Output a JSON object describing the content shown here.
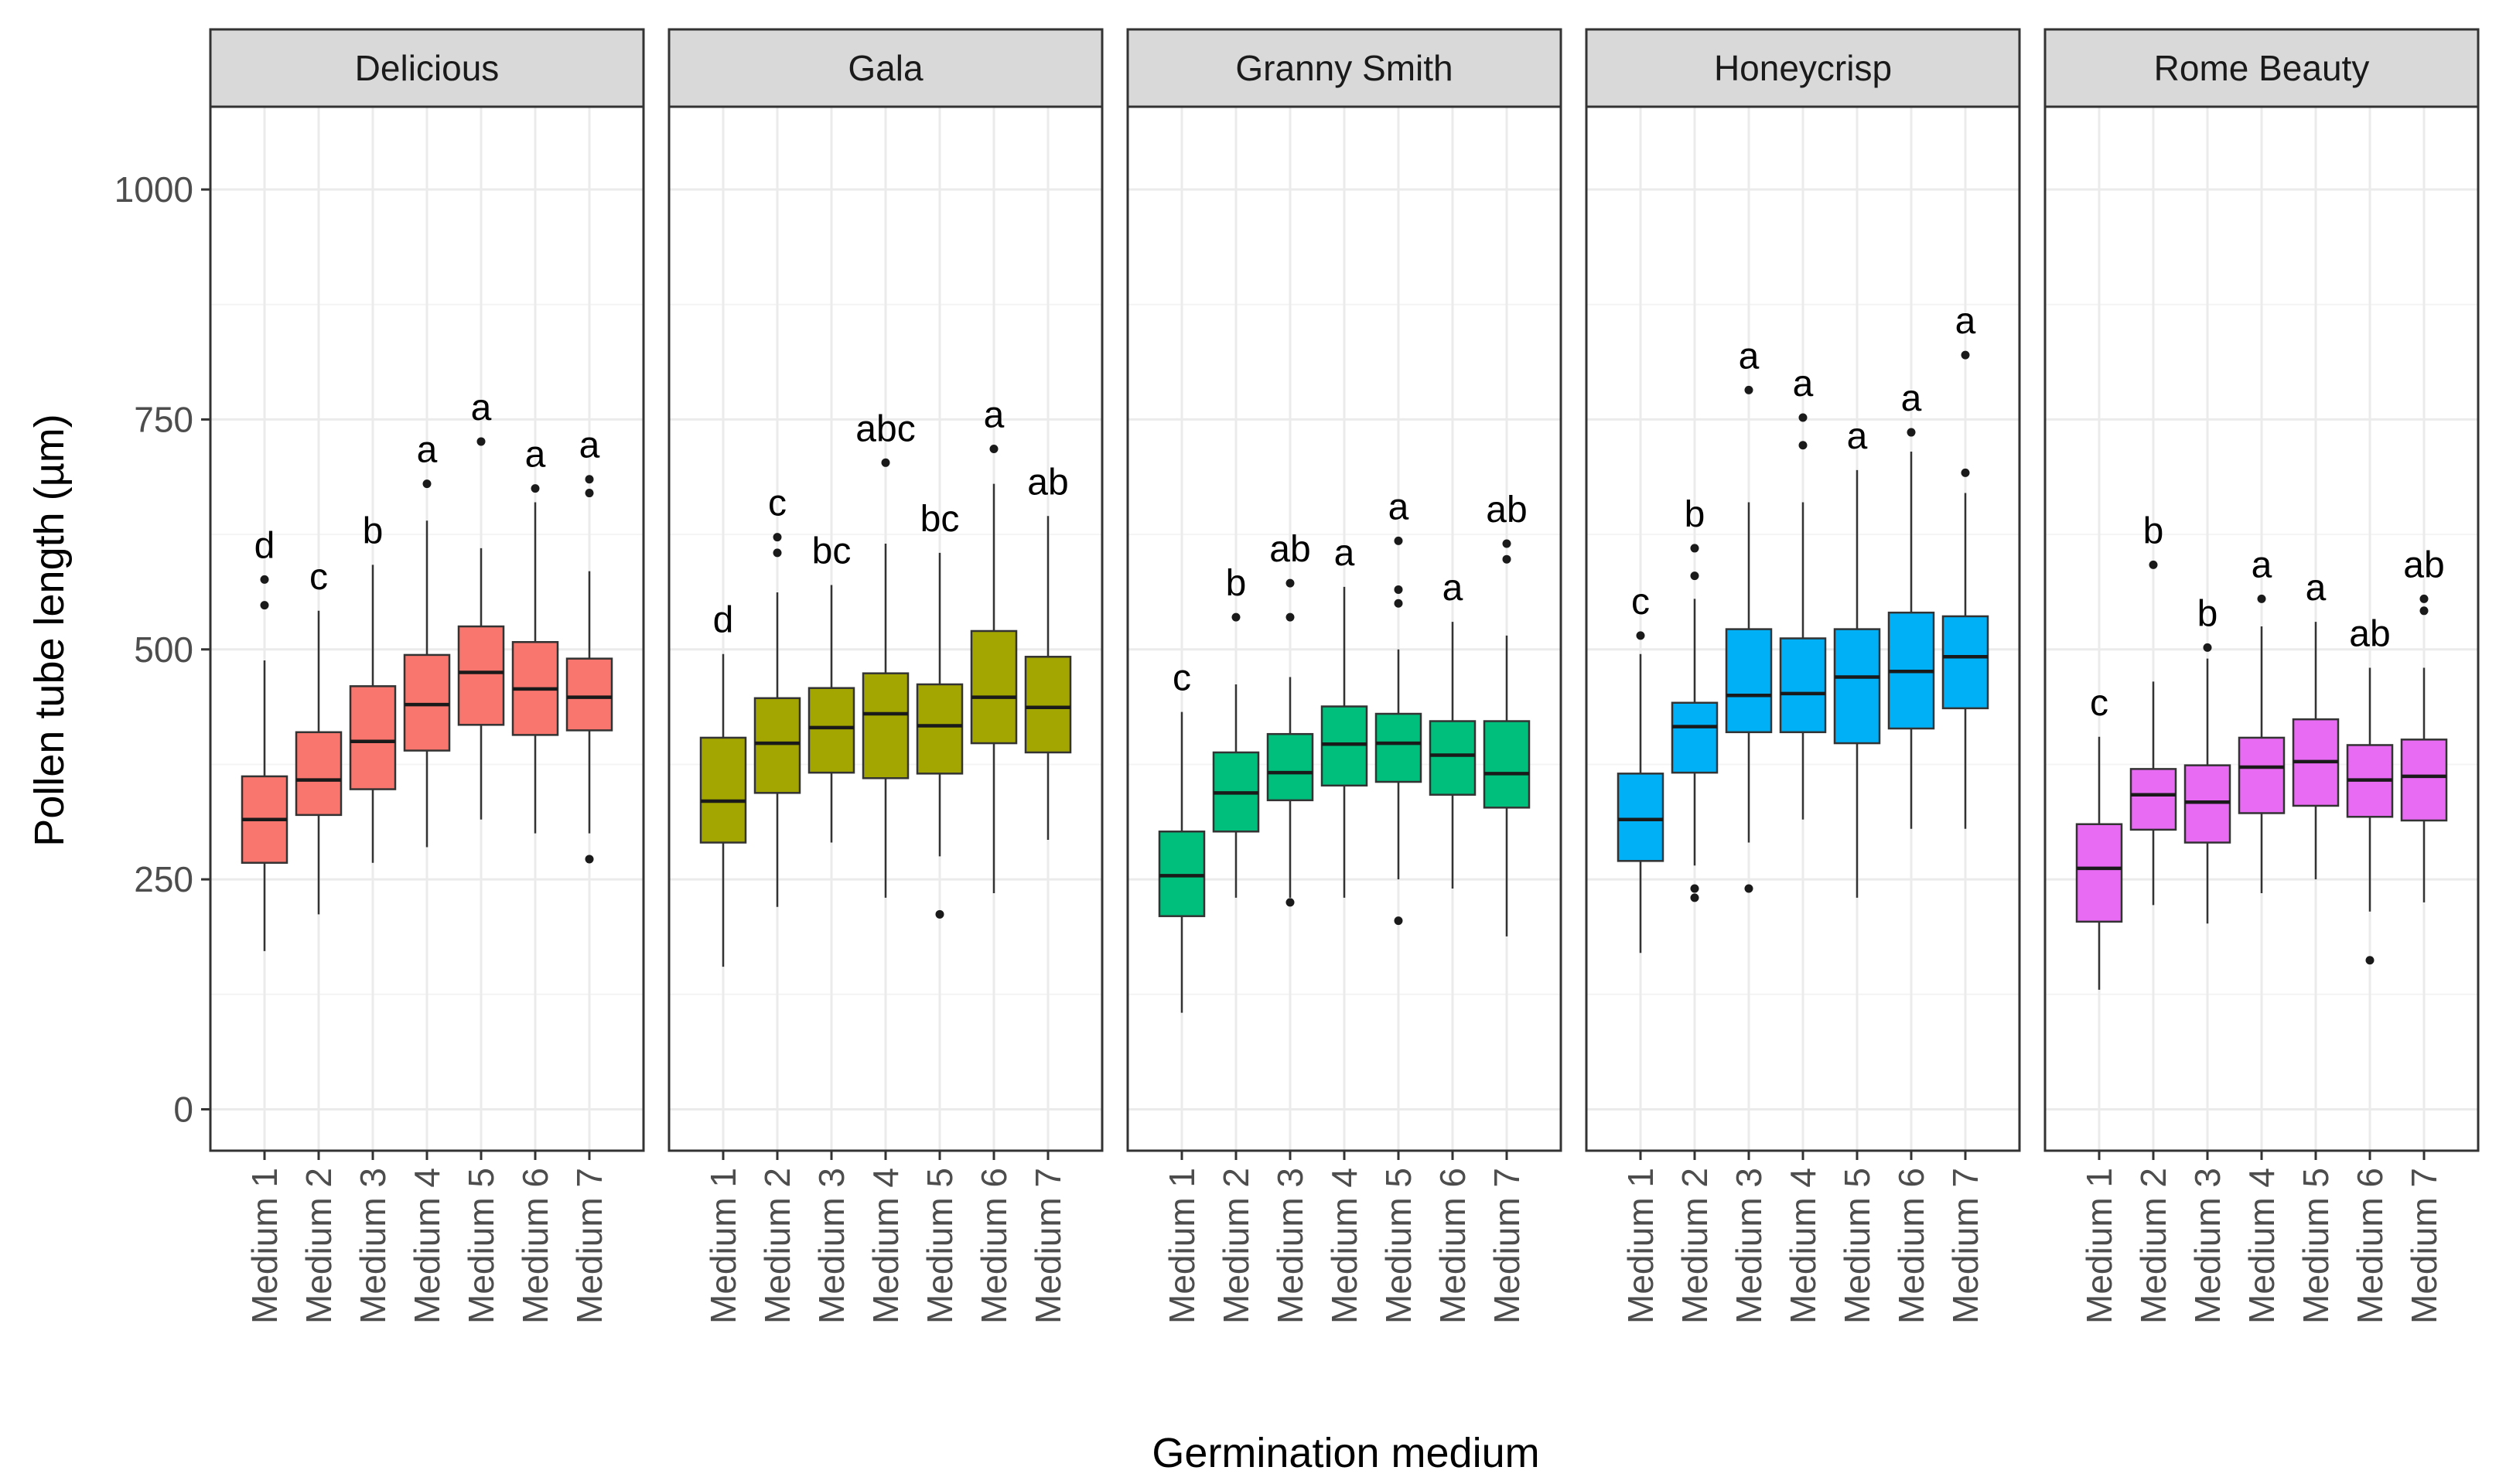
{
  "chart_data": {
    "type": "boxplot",
    "facet_by": "cultivar",
    "xlabel": "Germination medium",
    "ylabel": "Pollen tube length (µm)",
    "ylim": [
      -45,
      1090
    ],
    "yticks": [
      0,
      250,
      500,
      750,
      1000
    ],
    "categories": [
      "Medium 1",
      "Medium 2",
      "Medium 3",
      "Medium 4",
      "Medium 5",
      "Medium 6",
      "Medium 7"
    ],
    "panels": [
      {
        "name": "Delicious",
        "color": "#F8766D",
        "boxes": [
          {
            "q1": 268,
            "median": 315,
            "q3": 362,
            "lower": 172,
            "upper": 488,
            "outliers": [
              548,
              576
            ],
            "letter": "d"
          },
          {
            "q1": 320,
            "median": 358,
            "q3": 410,
            "lower": 212,
            "upper": 542,
            "outliers": [],
            "letter": "c"
          },
          {
            "q1": 348,
            "median": 400,
            "q3": 460,
            "lower": 268,
            "upper": 592,
            "outliers": [],
            "letter": "b"
          },
          {
            "q1": 390,
            "median": 440,
            "q3": 494,
            "lower": 285,
            "upper": 640,
            "outliers": [
              680
            ],
            "letter": "a"
          },
          {
            "q1": 418,
            "median": 475,
            "q3": 525,
            "lower": 315,
            "upper": 610,
            "outliers": [
              726
            ],
            "letter": "a"
          },
          {
            "q1": 407,
            "median": 457,
            "q3": 508,
            "lower": 300,
            "upper": 660,
            "outliers": [
              675
            ],
            "letter": "a"
          },
          {
            "q1": 412,
            "median": 448,
            "q3": 490,
            "lower": 300,
            "upper": 585,
            "outliers": [
              272,
              670,
              685
            ],
            "letter": "a"
          }
        ]
      },
      {
        "name": "Gala",
        "color": "#A3A500",
        "boxes": [
          {
            "q1": 290,
            "median": 335,
            "q3": 404,
            "lower": 155,
            "upper": 495,
            "outliers": [],
            "letter": "d"
          },
          {
            "q1": 344,
            "median": 398,
            "q3": 447,
            "lower": 220,
            "upper": 562,
            "outliers": [
              605,
              622
            ],
            "letter": "c"
          },
          {
            "q1": 366,
            "median": 415,
            "q3": 458,
            "lower": 290,
            "upper": 570,
            "outliers": [],
            "letter": "bc"
          },
          {
            "q1": 360,
            "median": 430,
            "q3": 474,
            "lower": 230,
            "upper": 615,
            "outliers": [
              703
            ],
            "letter": "abc"
          },
          {
            "q1": 365,
            "median": 417,
            "q3": 462,
            "lower": 275,
            "upper": 605,
            "outliers": [
              212
            ],
            "letter": "bc"
          },
          {
            "q1": 398,
            "median": 448,
            "q3": 520,
            "lower": 235,
            "upper": 680,
            "outliers": [
              718
            ],
            "letter": "a"
          },
          {
            "q1": 388,
            "median": 437,
            "q3": 492,
            "lower": 293,
            "upper": 645,
            "outliers": [],
            "letter": "ab"
          }
        ]
      },
      {
        "name": "Granny Smith",
        "color": "#00BF7D",
        "boxes": [
          {
            "q1": 210,
            "median": 254,
            "q3": 302,
            "lower": 105,
            "upper": 432,
            "outliers": [],
            "letter": "c"
          },
          {
            "q1": 302,
            "median": 344,
            "q3": 388,
            "lower": 230,
            "upper": 462,
            "outliers": [
              535
            ],
            "letter": "b"
          },
          {
            "q1": 336,
            "median": 366,
            "q3": 408,
            "lower": 230,
            "upper": 470,
            "outliers": [
              225,
              535,
              572
            ],
            "letter": "ab"
          },
          {
            "q1": 352,
            "median": 397,
            "q3": 438,
            "lower": 230,
            "upper": 568,
            "outliers": [],
            "letter": "a"
          },
          {
            "q1": 356,
            "median": 398,
            "q3": 430,
            "lower": 250,
            "upper": 500,
            "outliers": [
              205,
              550,
              565,
              618
            ],
            "letter": "a"
          },
          {
            "q1": 342,
            "median": 385,
            "q3": 422,
            "lower": 240,
            "upper": 530,
            "outliers": [],
            "letter": "a"
          },
          {
            "q1": 328,
            "median": 365,
            "q3": 422,
            "lower": 188,
            "upper": 515,
            "outliers": [
              598,
              615
            ],
            "letter": "ab"
          }
        ]
      },
      {
        "name": "Honeycrisp",
        "color": "#00B0F6",
        "boxes": [
          {
            "q1": 270,
            "median": 315,
            "q3": 365,
            "lower": 170,
            "upper": 495,
            "outliers": [
              515
            ],
            "letter": "c"
          },
          {
            "q1": 366,
            "median": 416,
            "q3": 442,
            "lower": 265,
            "upper": 555,
            "outliers": [
              230,
              240,
              580,
              610
            ],
            "letter": "b"
          },
          {
            "q1": 410,
            "median": 450,
            "q3": 522,
            "lower": 290,
            "upper": 660,
            "outliers": [
              240,
              782
            ],
            "letter": "a"
          },
          {
            "q1": 410,
            "median": 452,
            "q3": 512,
            "lower": 315,
            "upper": 660,
            "outliers": [
              722,
              752
            ],
            "letter": "a"
          },
          {
            "q1": 398,
            "median": 470,
            "q3": 522,
            "lower": 230,
            "upper": 695,
            "outliers": [],
            "letter": "a"
          },
          {
            "q1": 414,
            "median": 476,
            "q3": 540,
            "lower": 305,
            "upper": 715,
            "outliers": [
              736
            ],
            "letter": "a"
          },
          {
            "q1": 436,
            "median": 492,
            "q3": 536,
            "lower": 305,
            "upper": 670,
            "outliers": [
              692,
              820
            ],
            "letter": "a"
          }
        ]
      },
      {
        "name": "Rome Beauty",
        "color": "#E76BF3",
        "boxes": [
          {
            "q1": 204,
            "median": 262,
            "q3": 310,
            "lower": 130,
            "upper": 405,
            "outliers": [],
            "letter": "c"
          },
          {
            "q1": 304,
            "median": 342,
            "q3": 370,
            "lower": 222,
            "upper": 465,
            "outliers": [
              592
            ],
            "letter": "b"
          },
          {
            "q1": 290,
            "median": 334,
            "q3": 374,
            "lower": 202,
            "upper": 490,
            "outliers": [
              502
            ],
            "letter": "b"
          },
          {
            "q1": 322,
            "median": 372,
            "q3": 404,
            "lower": 235,
            "upper": 525,
            "outliers": [
              555
            ],
            "letter": "a"
          },
          {
            "q1": 330,
            "median": 378,
            "q3": 424,
            "lower": 250,
            "upper": 530,
            "outliers": [],
            "letter": "a"
          },
          {
            "q1": 318,
            "median": 358,
            "q3": 396,
            "lower": 215,
            "upper": 480,
            "outliers": [
              162
            ],
            "letter": "ab"
          },
          {
            "q1": 314,
            "median": 362,
            "q3": 402,
            "lower": 225,
            "upper": 480,
            "outliers": [
              542,
              555
            ],
            "letter": "ab"
          }
        ]
      }
    ]
  }
}
